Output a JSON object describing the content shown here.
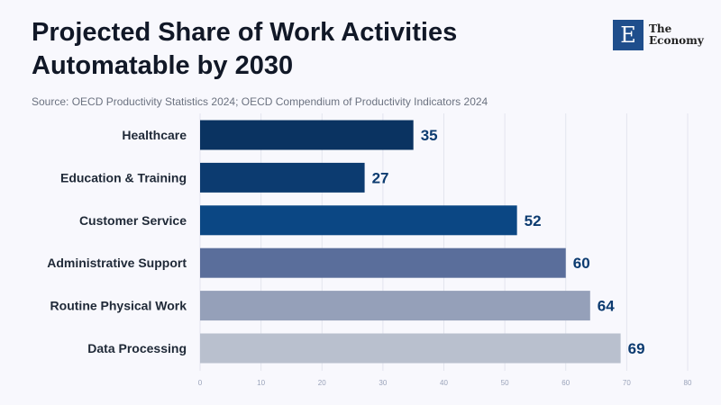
{
  "header": {
    "title": "Projected Share of Work Activities Automatable by 2030",
    "source": "Source: OECD Productivity Statistics 2024; OECD Compendium of Productivity Indicators 2024"
  },
  "logo": {
    "mark": "E",
    "line1": "The",
    "line2": "Economy"
  },
  "chart_data": {
    "type": "bar",
    "orientation": "horizontal",
    "title": "Projected Share of Work Activities Automatable by 2030",
    "categories": [
      "Healthcare",
      "Education & Training",
      "Customer Service",
      "Administrative Support",
      "Routine Physical Work",
      "Data Processing"
    ],
    "values": [
      35,
      27,
      52,
      60,
      64,
      69
    ],
    "colors": [
      "#0a3361",
      "#0c3b70",
      "#0b4784",
      "#5a6e9b",
      "#95a0b9",
      "#b9c0ce"
    ],
    "xlim": [
      0,
      80
    ],
    "xticks": [
      0,
      10,
      20,
      30,
      40,
      50,
      60,
      70,
      80
    ],
    "grid": true,
    "xlabel": "",
    "ylabel": ""
  }
}
